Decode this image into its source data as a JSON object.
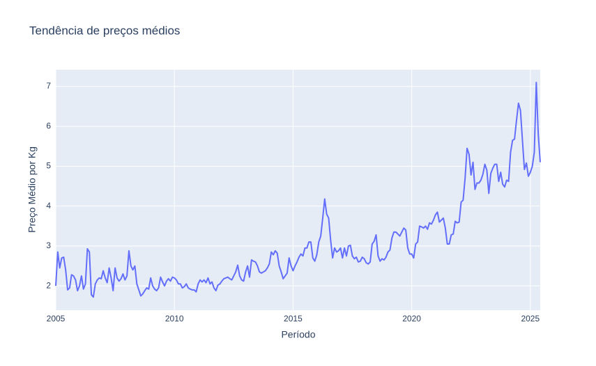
{
  "chart_data": {
    "type": "line",
    "title": "Tendência de preços médios",
    "x_label": "Período",
    "y_label": "Preço Médio por Kg",
    "color": "#636efa",
    "grid": true,
    "xlim": [
      "2005-01",
      "2025-06"
    ],
    "ylim": [
      1.39,
      7.42
    ],
    "xticks": [
      2005,
      2010,
      2015,
      2020,
      2025
    ],
    "yticks": [
      2,
      3,
      4,
      5,
      6,
      7
    ],
    "x": [
      "2005-01",
      "2005-02",
      "2005-03",
      "2005-04",
      "2005-05",
      "2005-06",
      "2005-07",
      "2005-08",
      "2005-09",
      "2005-10",
      "2005-11",
      "2005-12",
      "2006-01",
      "2006-02",
      "2006-03",
      "2006-04",
      "2006-05",
      "2006-06",
      "2006-07",
      "2006-08",
      "2006-09",
      "2006-10",
      "2006-11",
      "2006-12",
      "2007-01",
      "2007-02",
      "2007-03",
      "2007-04",
      "2007-05",
      "2007-06",
      "2007-07",
      "2007-08",
      "2007-09",
      "2007-10",
      "2007-11",
      "2007-12",
      "2008-01",
      "2008-02",
      "2008-03",
      "2008-04",
      "2008-05",
      "2008-06",
      "2008-07",
      "2008-08",
      "2008-09",
      "2008-10",
      "2008-11",
      "2008-12",
      "2009-01",
      "2009-02",
      "2009-03",
      "2009-04",
      "2009-05",
      "2009-06",
      "2009-07",
      "2009-08",
      "2009-09",
      "2009-10",
      "2009-11",
      "2009-12",
      "2010-01",
      "2010-02",
      "2010-03",
      "2010-04",
      "2010-05",
      "2010-06",
      "2010-07",
      "2010-08",
      "2010-09",
      "2010-10",
      "2010-11",
      "2010-12",
      "2011-01",
      "2011-02",
      "2011-03",
      "2011-04",
      "2011-05",
      "2011-06",
      "2011-07",
      "2011-08",
      "2011-09",
      "2011-10",
      "2011-11",
      "2011-12",
      "2012-01",
      "2012-02",
      "2012-03",
      "2012-04",
      "2012-05",
      "2012-06",
      "2012-07",
      "2012-08",
      "2012-09",
      "2012-10",
      "2012-11",
      "2012-12",
      "2013-01",
      "2013-02",
      "2013-03",
      "2013-04",
      "2013-05",
      "2013-06",
      "2013-07",
      "2013-08",
      "2013-09",
      "2013-10",
      "2013-11",
      "2013-12",
      "2014-01",
      "2014-02",
      "2014-03",
      "2014-04",
      "2014-05",
      "2014-06",
      "2014-07",
      "2014-08",
      "2014-09",
      "2014-10",
      "2014-11",
      "2014-12",
      "2015-01",
      "2015-02",
      "2015-03",
      "2015-04",
      "2015-05",
      "2015-06",
      "2015-07",
      "2015-08",
      "2015-09",
      "2015-10",
      "2015-11",
      "2015-12",
      "2016-01",
      "2016-02",
      "2016-03",
      "2016-04",
      "2016-05",
      "2016-06",
      "2016-07",
      "2016-08",
      "2016-09",
      "2016-10",
      "2016-11",
      "2016-12",
      "2017-01",
      "2017-02",
      "2017-03",
      "2017-04",
      "2017-05",
      "2017-06",
      "2017-07",
      "2017-08",
      "2017-09",
      "2017-10",
      "2017-11",
      "2017-12",
      "2018-01",
      "2018-02",
      "2018-03",
      "2018-04",
      "2018-05",
      "2018-06",
      "2018-07",
      "2018-08",
      "2018-09",
      "2018-10",
      "2018-11",
      "2018-12",
      "2019-01",
      "2019-02",
      "2019-03",
      "2019-04",
      "2019-05",
      "2019-06",
      "2019-07",
      "2019-08",
      "2019-09",
      "2019-10",
      "2019-11",
      "2019-12",
      "2020-01",
      "2020-02",
      "2020-03",
      "2020-04",
      "2020-05",
      "2020-06",
      "2020-07",
      "2020-08",
      "2020-09",
      "2020-10",
      "2020-11",
      "2020-12",
      "2021-01",
      "2021-02",
      "2021-03",
      "2021-04",
      "2021-05",
      "2021-06",
      "2021-07",
      "2021-08",
      "2021-09",
      "2021-10",
      "2021-11",
      "2021-12",
      "2022-01",
      "2022-02",
      "2022-03",
      "2022-04",
      "2022-05",
      "2022-06",
      "2022-07",
      "2022-08",
      "2022-09",
      "2022-10",
      "2022-11",
      "2022-12",
      "2023-01",
      "2023-02",
      "2023-03",
      "2023-04",
      "2023-05",
      "2023-06",
      "2023-07",
      "2023-08",
      "2023-09",
      "2023-10",
      "2023-11",
      "2023-12",
      "2024-01",
      "2024-02",
      "2024-03",
      "2024-04",
      "2024-05",
      "2024-06",
      "2024-07",
      "2024-08",
      "2024-09",
      "2024-10",
      "2024-11",
      "2024-12",
      "2025-01",
      "2025-02",
      "2025-03",
      "2025-04",
      "2025-05",
      "2025-06"
    ],
    "values": [
      2.0,
      2.85,
      2.45,
      2.7,
      2.72,
      2.4,
      1.9,
      1.95,
      2.28,
      2.25,
      2.15,
      1.88,
      2.0,
      2.25,
      1.92,
      2.05,
      2.93,
      2.85,
      1.78,
      1.72,
      2.05,
      2.15,
      2.2,
      2.18,
      2.38,
      2.2,
      2.08,
      2.45,
      2.2,
      1.88,
      2.45,
      2.2,
      2.12,
      2.18,
      2.3,
      2.15,
      2.25,
      2.88,
      2.5,
      2.4,
      2.5,
      2.05,
      1.9,
      1.75,
      1.8,
      1.88,
      1.95,
      1.92,
      2.2,
      2.0,
      1.92,
      1.88,
      1.95,
      2.22,
      2.1,
      2.0,
      2.12,
      2.18,
      2.12,
      2.22,
      2.2,
      2.15,
      2.05,
      2.05,
      1.95,
      1.98,
      2.05,
      1.95,
      1.92,
      1.9,
      1.9,
      1.85,
      2.05,
      2.15,
      2.1,
      2.15,
      2.08,
      2.2,
      2.05,
      2.1,
      1.95,
      1.88,
      2.02,
      2.05,
      2.12,
      2.18,
      2.2,
      2.22,
      2.18,
      2.15,
      2.25,
      2.35,
      2.52,
      2.25,
      2.15,
      2.12,
      2.35,
      2.5,
      2.22,
      2.65,
      2.62,
      2.6,
      2.5,
      2.35,
      2.32,
      2.35,
      2.38,
      2.45,
      2.55,
      2.85,
      2.78,
      2.88,
      2.82,
      2.5,
      2.35,
      2.18,
      2.25,
      2.32,
      2.7,
      2.5,
      2.38,
      2.5,
      2.6,
      2.72,
      2.8,
      2.75,
      2.95,
      2.95,
      3.1,
      3.1,
      2.7,
      2.62,
      2.78,
      3.1,
      3.25,
      3.7,
      4.18,
      3.8,
      3.7,
      3.15,
      2.7,
      2.95,
      2.85,
      2.88,
      2.95,
      2.7,
      2.95,
      2.75,
      3.0,
      3.02,
      2.75,
      2.68,
      2.72,
      2.6,
      2.62,
      2.72,
      2.68,
      2.58,
      2.55,
      2.6,
      3.05,
      3.12,
      3.28,
      2.75,
      2.62,
      2.68,
      2.65,
      2.72,
      2.85,
      2.9,
      3.2,
      3.35,
      3.35,
      3.3,
      3.25,
      3.35,
      3.45,
      3.4,
      2.95,
      2.8,
      2.8,
      2.7,
      3.05,
      3.1,
      3.5,
      3.48,
      3.45,
      3.5,
      3.42,
      3.58,
      3.55,
      3.65,
      3.78,
      3.85,
      3.6,
      3.65,
      3.7,
      3.45,
      3.05,
      3.05,
      3.28,
      3.3,
      3.62,
      3.58,
      3.6,
      4.1,
      4.15,
      4.7,
      5.45,
      5.3,
      4.78,
      5.1,
      4.42,
      4.58,
      4.58,
      4.65,
      4.8,
      5.05,
      4.9,
      4.32,
      4.82,
      4.95,
      5.05,
      5.05,
      4.62,
      4.85,
      4.55,
      4.48,
      4.65,
      4.62,
      5.35,
      5.65,
      5.68,
      6.15,
      6.58,
      6.4,
      5.65,
      4.92,
      5.08,
      4.75,
      4.85,
      5.0,
      5.35,
      7.1,
      5.8,
      5.1
    ]
  }
}
